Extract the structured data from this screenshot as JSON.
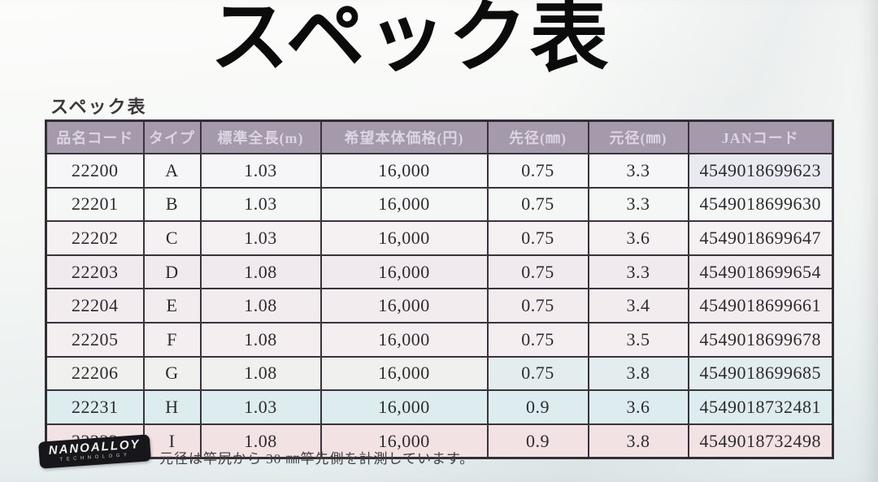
{
  "page_title": "スペック表",
  "section_label": "スペック表",
  "table": {
    "headers": [
      "品名コード",
      "タイプ",
      "標準全長(m)",
      "希望本体価格(円)",
      "先径(㎜)",
      "元径(㎜)",
      "JANコード"
    ],
    "rows": [
      [
        "22200",
        "A",
        "1.03",
        "16,000",
        "0.75",
        "3.3",
        "4549018699623"
      ],
      [
        "22201",
        "B",
        "1.03",
        "16,000",
        "0.75",
        "3.3",
        "4549018699630"
      ],
      [
        "22202",
        "C",
        "1.03",
        "16,000",
        "0.75",
        "3.6",
        "4549018699647"
      ],
      [
        "22203",
        "D",
        "1.08",
        "16,000",
        "0.75",
        "3.3",
        "4549018699654"
      ],
      [
        "22204",
        "E",
        "1.08",
        "16,000",
        "0.75",
        "3.4",
        "4549018699661"
      ],
      [
        "22205",
        "F",
        "1.08",
        "16,000",
        "0.75",
        "3.5",
        "4549018699678"
      ],
      [
        "22206",
        "G",
        "1.08",
        "16,000",
        "0.75",
        "3.8",
        "4549018699685"
      ],
      [
        "22231",
        "H",
        "1.03",
        "16,000",
        "0.9",
        "3.6",
        "4549018732481"
      ],
      [
        "22232",
        "I",
        "1.08",
        "16,000",
        "0.9",
        "3.8",
        "4549018732498"
      ]
    ],
    "header_bg_color": "#a49aab",
    "header_text_color": "#dcd4e3"
  },
  "logo": {
    "line1": "NANOALLOY",
    "line2": "TECHNOLOGY"
  },
  "footnote": "元径は竿尻から 30 ㎜竿先側を計測しています。"
}
